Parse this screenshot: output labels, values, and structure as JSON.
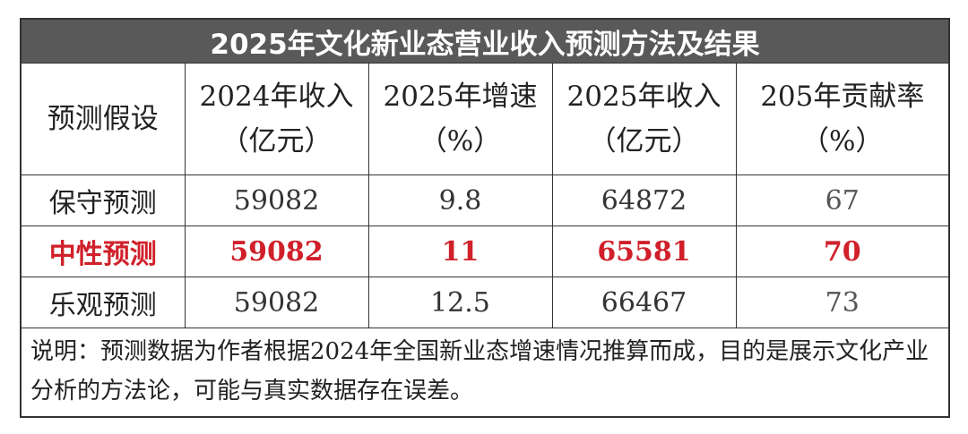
{
  "title": "2025年文化新业态营业收入预测方法及结果",
  "table": {
    "header": [
      [
        "预测假设"
      ],
      [
        "2024年收入",
        "（亿元）"
      ],
      [
        "2025年增速",
        "（%）"
      ],
      [
        "2025年收入",
        "（亿元）"
      ],
      [
        "205年贡献率",
        "（%）"
      ]
    ],
    "rows": [
      [
        "保守预测",
        "59082",
        "9.8",
        "64872",
        "67"
      ],
      [
        "中性预测",
        "59082",
        "11",
        "65581",
        "70"
      ],
      [
        "乐观预测",
        "59082",
        "12.5",
        "66467",
        "73"
      ]
    ]
  },
  "note": "说明：预测数据为作者根据2024年全国新业态增速情况推算而成，目的是展示文化产业分析的方法论，可能与真实数据存在误差。"
}
